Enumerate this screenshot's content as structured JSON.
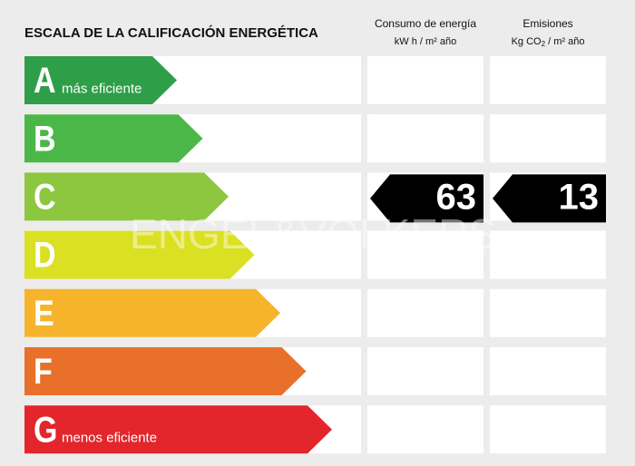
{
  "header": {
    "title": "ESCALA DE LA CALIFICACIÓN ENERGÉTICA",
    "consumption": {
      "label": "Consumo de energía",
      "unit": "kW h / m² año"
    },
    "emissions": {
      "label": "Emisiones",
      "unit_prefix": "Kg CO",
      "unit_sub": "2",
      "unit_suffix": " / m² año"
    }
  },
  "scale": [
    {
      "letter": "A",
      "note": "más eficiente",
      "color": "#2f9e49"
    },
    {
      "letter": "B",
      "color": "#4bb748"
    },
    {
      "letter": "C",
      "color": "#8dc63f",
      "consumption": 63,
      "emissions": 13
    },
    {
      "letter": "D",
      "color": "#dbe022"
    },
    {
      "letter": "E",
      "color": "#f6b42c"
    },
    {
      "letter": "F",
      "color": "#e8702a"
    },
    {
      "letter": "G",
      "note": "menos eficiente",
      "color": "#e2262c"
    }
  ],
  "watermark": "ENGEL&VÖLKERS"
}
